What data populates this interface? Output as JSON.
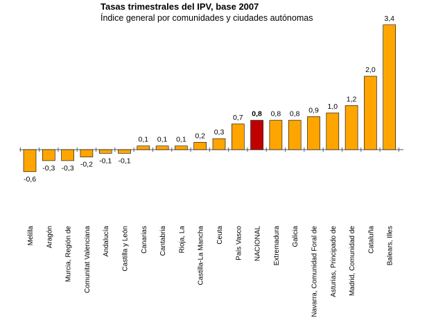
{
  "chart_data": {
    "type": "bar",
    "title": "Tasas trimestrales del IPV, base 2007",
    "subtitle": "Índice general por comunidades y ciudades autónomas",
    "categories": [
      "Melilla",
      "Aragón",
      "Murcia, Región de",
      "Comunitat Valenciana",
      "Andalucía",
      "Castilla y León",
      "Canarias",
      "Cantabria",
      "Rioja, La",
      "Castilla-La Mancha",
      "Ceuta",
      "País Vasco",
      "NACIONAL",
      "Extremadura",
      "Galicia",
      "Navarra, Comunidad Foral de",
      "Asturias, Principado de",
      "Madrid, Comunidad de",
      "Cataluña",
      "Balears, Illes"
    ],
    "values": [
      -0.6,
      -0.3,
      -0.3,
      -0.2,
      -0.1,
      -0.1,
      0.1,
      0.1,
      0.1,
      0.2,
      0.3,
      0.7,
      0.8,
      0.8,
      0.8,
      0.9,
      1.0,
      1.2,
      2.0,
      3.4
    ],
    "labels": [
      "-0,6",
      "-0,3",
      "-0,3",
      "-0,2",
      "-0,1",
      "-0,1",
      "0,1",
      "0,1",
      "0,1",
      "0,2",
      "0,3",
      "0,7",
      "0,8",
      "0,8",
      "0,8",
      "0,9",
      "1,0",
      "1,2",
      "2,0",
      "3,4"
    ],
    "highlight_category": "NACIONAL",
    "colors": {
      "bar": "#FFA500",
      "highlight": "#C00000",
      "stroke": "#000000",
      "axis": "#555555"
    },
    "xlabel": "",
    "ylabel": "",
    "grid": false,
    "legend": "none"
  }
}
